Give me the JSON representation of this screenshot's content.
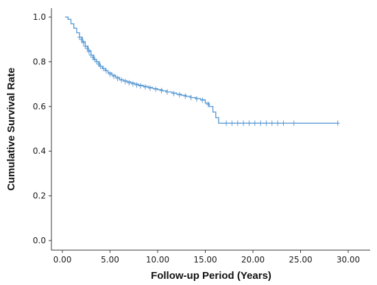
{
  "chart_data": {
    "type": "line",
    "title": "",
    "xlabel": "Follow-up Period (Years)",
    "ylabel": "Cumulative Survival Rate",
    "xlim": [
      0,
      30
    ],
    "ylim": [
      0,
      1.0
    ],
    "x_ticks": [
      0,
      5,
      10,
      15,
      20,
      25,
      30
    ],
    "x_tick_labels": [
      "0.00",
      "5.00",
      "10.00",
      "15.00",
      "20.00",
      "25.00",
      "30.00"
    ],
    "y_ticks": [
      0,
      0.2,
      0.4,
      0.6,
      0.8,
      1.0
    ],
    "y_tick_labels": [
      "0.0",
      "0.2",
      "0.4",
      "0.6",
      "0.8",
      "1.0"
    ],
    "grid": false,
    "color": "#5b9bd5",
    "series": [
      {
        "x": [
          0.3,
          0.6,
          0.9,
          1.2,
          1.5,
          1.8,
          2.1,
          2.4,
          2.7,
          3.0,
          3.3,
          3.6,
          3.9,
          4.2,
          4.5,
          4.8,
          5.2,
          5.6,
          6.0,
          6.4,
          6.8,
          7.2,
          7.6,
          8.0,
          8.5,
          9.0,
          9.5,
          10.0,
          10.5,
          11.0,
          11.5,
          12.0,
          12.5,
          13.0,
          13.5,
          14.0,
          14.5,
          15.0,
          15.4,
          15.8,
          16.1,
          16.4,
          18,
          20,
          22,
          24,
          26,
          28,
          29
        ],
        "y": [
          1.0,
          0.99,
          0.97,
          0.95,
          0.93,
          0.91,
          0.89,
          0.87,
          0.85,
          0.83,
          0.81,
          0.8,
          0.78,
          0.77,
          0.76,
          0.75,
          0.74,
          0.73,
          0.72,
          0.715,
          0.71,
          0.705,
          0.7,
          0.695,
          0.69,
          0.685,
          0.68,
          0.675,
          0.67,
          0.665,
          0.66,
          0.655,
          0.65,
          0.645,
          0.64,
          0.635,
          0.63,
          0.615,
          0.6,
          0.575,
          0.55,
          0.525,
          0.525,
          0.525,
          0.525,
          0.525,
          0.525,
          0.525,
          0.525
        ]
      }
    ],
    "censored": {
      "x": [
        1.8,
        2.0,
        2.2,
        2.4,
        2.6,
        2.8,
        3.0,
        3.2,
        3.4,
        3.6,
        3.8,
        4.0,
        4.3,
        4.6,
        5.0,
        5.4,
        5.8,
        6.2,
        6.6,
        7.0,
        7.4,
        7.8,
        8.2,
        8.7,
        9.2,
        9.8,
        10.4,
        11.0,
        11.7,
        12.3,
        12.9,
        13.5,
        14.1,
        14.7,
        15.3,
        17.2,
        17.8,
        18.4,
        19.0,
        19.6,
        20.2,
        20.8,
        21.4,
        22.0,
        22.6,
        23.2,
        24.3,
        28.9
      ],
      "y": [
        0.91,
        0.9,
        0.885,
        0.87,
        0.86,
        0.845,
        0.83,
        0.82,
        0.81,
        0.8,
        0.79,
        0.78,
        0.77,
        0.76,
        0.745,
        0.735,
        0.725,
        0.718,
        0.712,
        0.706,
        0.701,
        0.696,
        0.692,
        0.687,
        0.682,
        0.677,
        0.671,
        0.665,
        0.658,
        0.652,
        0.646,
        0.64,
        0.634,
        0.628,
        0.61,
        0.525,
        0.525,
        0.525,
        0.525,
        0.525,
        0.525,
        0.525,
        0.525,
        0.525,
        0.525,
        0.525,
        0.525,
        0.525
      ]
    }
  }
}
